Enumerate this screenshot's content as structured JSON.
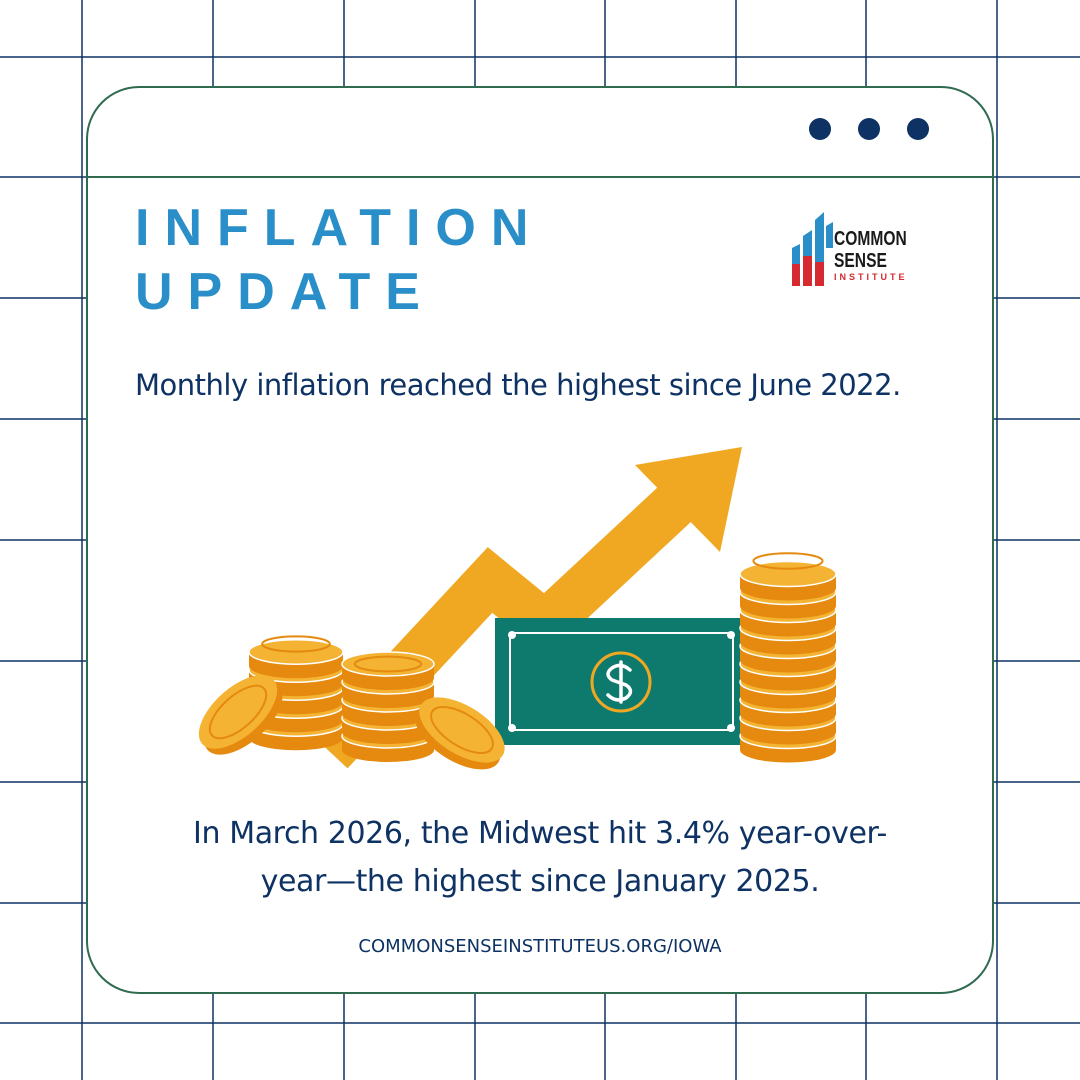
{
  "header": {
    "title_lines": [
      "INFLATION",
      "UPDATE"
    ],
    "logo_lines": [
      "COMMON",
      "SENSE",
      "INSTITUTE"
    ]
  },
  "headline": "Monthly inflation reached the highest since June 2022.",
  "body": "In March 2026, the Midwest hit 3.4% year-over-year—the highest since January 2025.",
  "footer": {
    "url": "COMMONSENSEINSTITUTEUS.ORG/IOWA"
  }
}
